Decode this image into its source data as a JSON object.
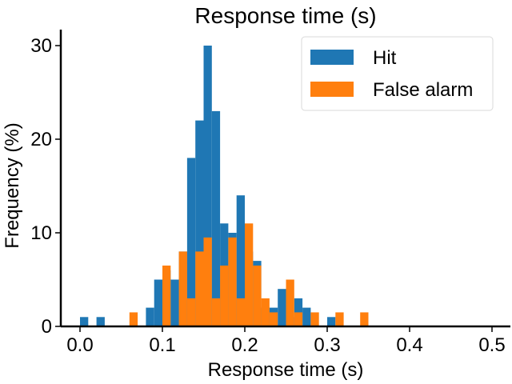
{
  "chart_data": {
    "type": "bar",
    "chart_kind": "histogram",
    "title": "Response time (s)",
    "xlabel": "Response time (s)",
    "ylabel": "Frequency (%)",
    "xlim": [
      -0.025,
      0.525
    ],
    "ylim": [
      0,
      31.5
    ],
    "xticks": [
      0.0,
      0.1,
      0.2,
      0.3,
      0.4,
      0.5
    ],
    "xtick_labels": [
      "0.0",
      "0.1",
      "0.2",
      "0.3",
      "0.4",
      "0.5"
    ],
    "yticks": [
      0,
      10,
      20,
      30
    ],
    "ytick_labels": [
      "0",
      "10",
      "20",
      "30"
    ],
    "grid": false,
    "legend_position": "top-right",
    "series": [
      {
        "name": "Hit",
        "color": "#1f77b4",
        "bin_width": 0.01,
        "bin_starts": [
          0.0,
          0.02,
          0.08,
          0.09,
          0.1,
          0.11,
          0.12,
          0.13,
          0.14,
          0.15,
          0.16,
          0.17,
          0.18,
          0.19,
          0.2,
          0.21,
          0.22,
          0.23,
          0.24,
          0.25,
          0.26,
          0.27,
          0.3
        ],
        "values": [
          1,
          1,
          2,
          5,
          6,
          5,
          8,
          18,
          22,
          30,
          23,
          11,
          10,
          14,
          8,
          7,
          2,
          2,
          4,
          1,
          3,
          2,
          1
        ]
      },
      {
        "name": "False alarm",
        "color": "#ff7f0e",
        "bin_width": 0.01,
        "bin_starts": [
          0.06,
          0.1,
          0.12,
          0.13,
          0.14,
          0.15,
          0.16,
          0.17,
          0.18,
          0.19,
          0.2,
          0.21,
          0.22,
          0.23,
          0.25,
          0.26,
          0.28,
          0.31,
          0.34
        ],
        "values": [
          1.5,
          6.5,
          8,
          3,
          8,
          9.5,
          3,
          6.5,
          9.5,
          3,
          11,
          6.5,
          3,
          1.5,
          5,
          1.5,
          1.5,
          1.5,
          1.5
        ]
      }
    ]
  }
}
